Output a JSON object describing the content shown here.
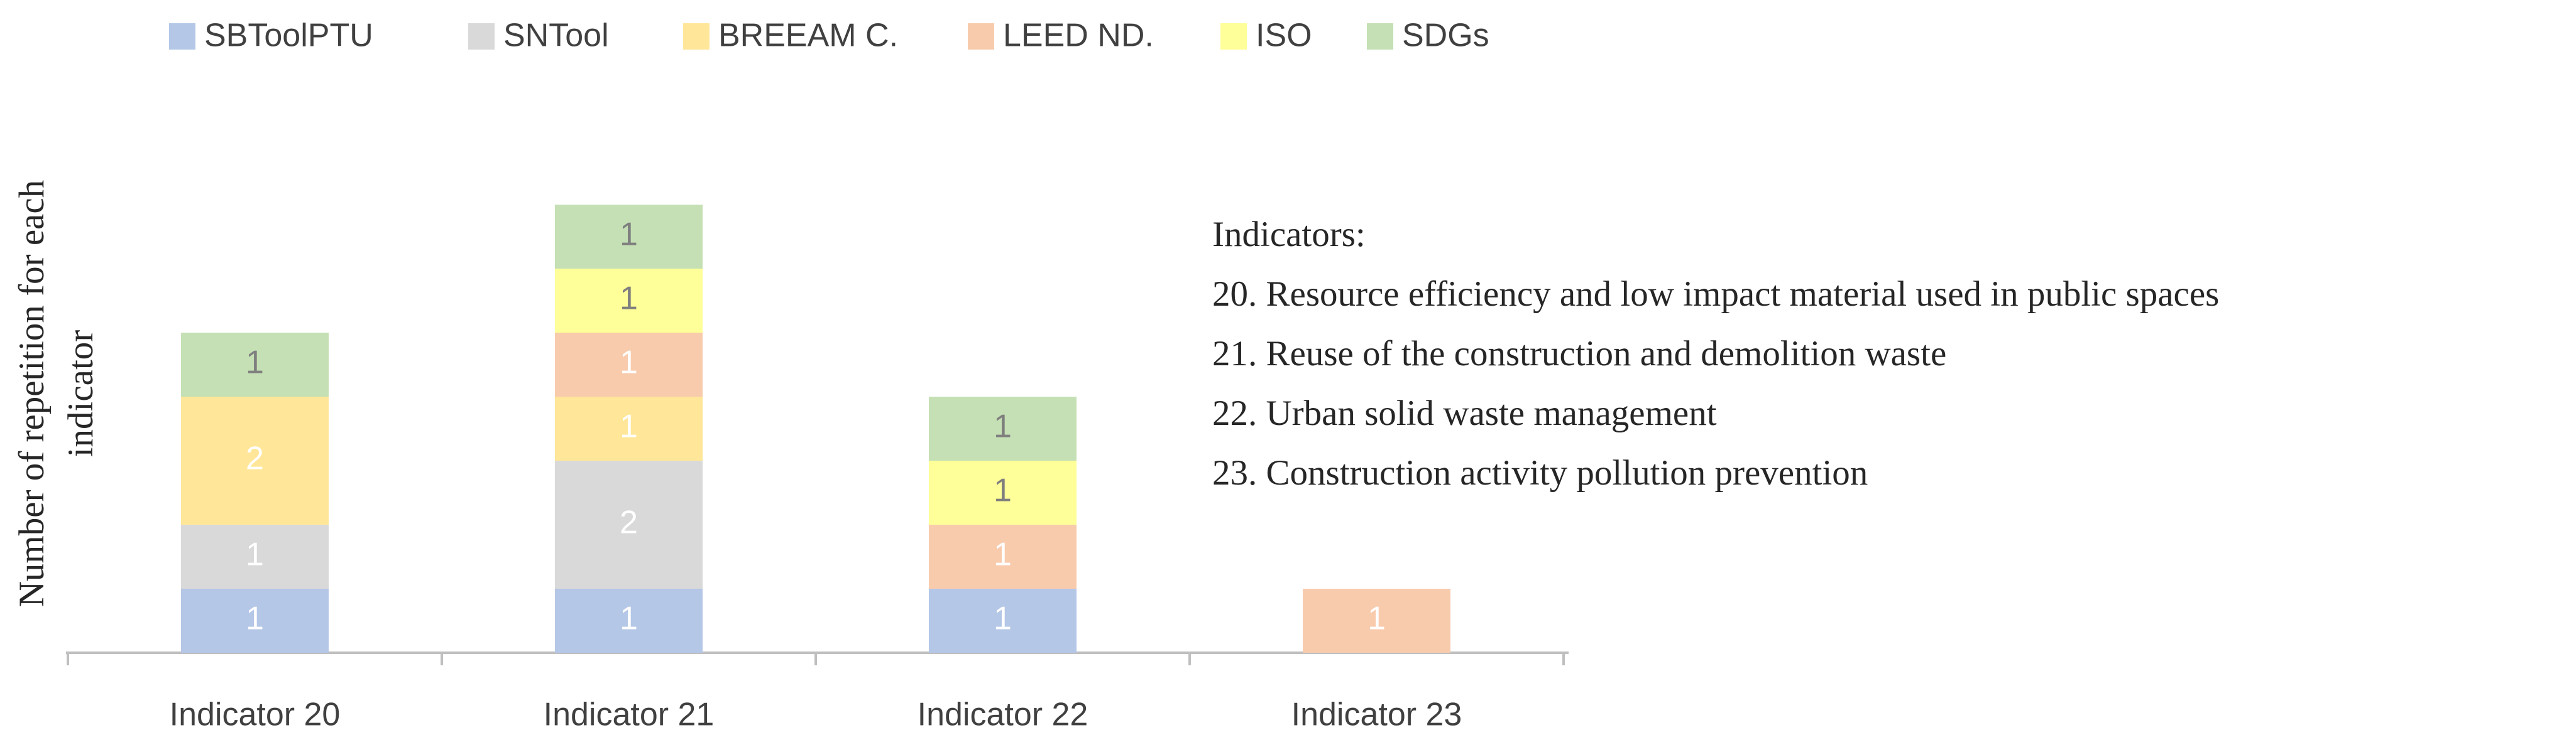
{
  "chart_data": {
    "type": "stacked_bar",
    "categories": [
      "Indicator 20",
      "Indicator 21",
      "Indicator 22",
      "Indicator 23"
    ],
    "series": [
      {
        "name": "SBToolPTU",
        "color": "#b4c7e7",
        "label_color": "#ffffff",
        "values": [
          1,
          1,
          1,
          null
        ]
      },
      {
        "name": "SNTool",
        "color": "#d9d9d9",
        "label_color": "#ffffff",
        "values": [
          1,
          2,
          null,
          null
        ]
      },
      {
        "name": "BREEAM C.",
        "color": "#ffe699",
        "label_color": "#ffffff",
        "values": [
          2,
          1,
          null,
          null
        ]
      },
      {
        "name": "LEED ND.",
        "color": "#f8cbad",
        "label_color": "#ffffff",
        "values": [
          null,
          1,
          1,
          1
        ]
      },
      {
        "name": "ISO",
        "color": "#ffff99",
        "label_color": "#7f7f7f",
        "values": [
          null,
          1,
          1,
          null
        ]
      },
      {
        "name": "SDGs",
        "color": "#c5e0b4",
        "label_color": "#7f7f7f",
        "values": [
          1,
          1,
          1,
          null
        ]
      }
    ],
    "y_label": [
      "Number of repetition for each",
      "indicator"
    ],
    "annotations": [
      "Indicators:",
      "20. Resource efficiency and low impact material used in public spaces",
      "21. Reuse of the construction and demolition waste",
      "22. Urban solid waste management",
      "23. Construction activity pollution prevention"
    ],
    "ylim": [
      0,
      9
    ],
    "legend": "top"
  }
}
